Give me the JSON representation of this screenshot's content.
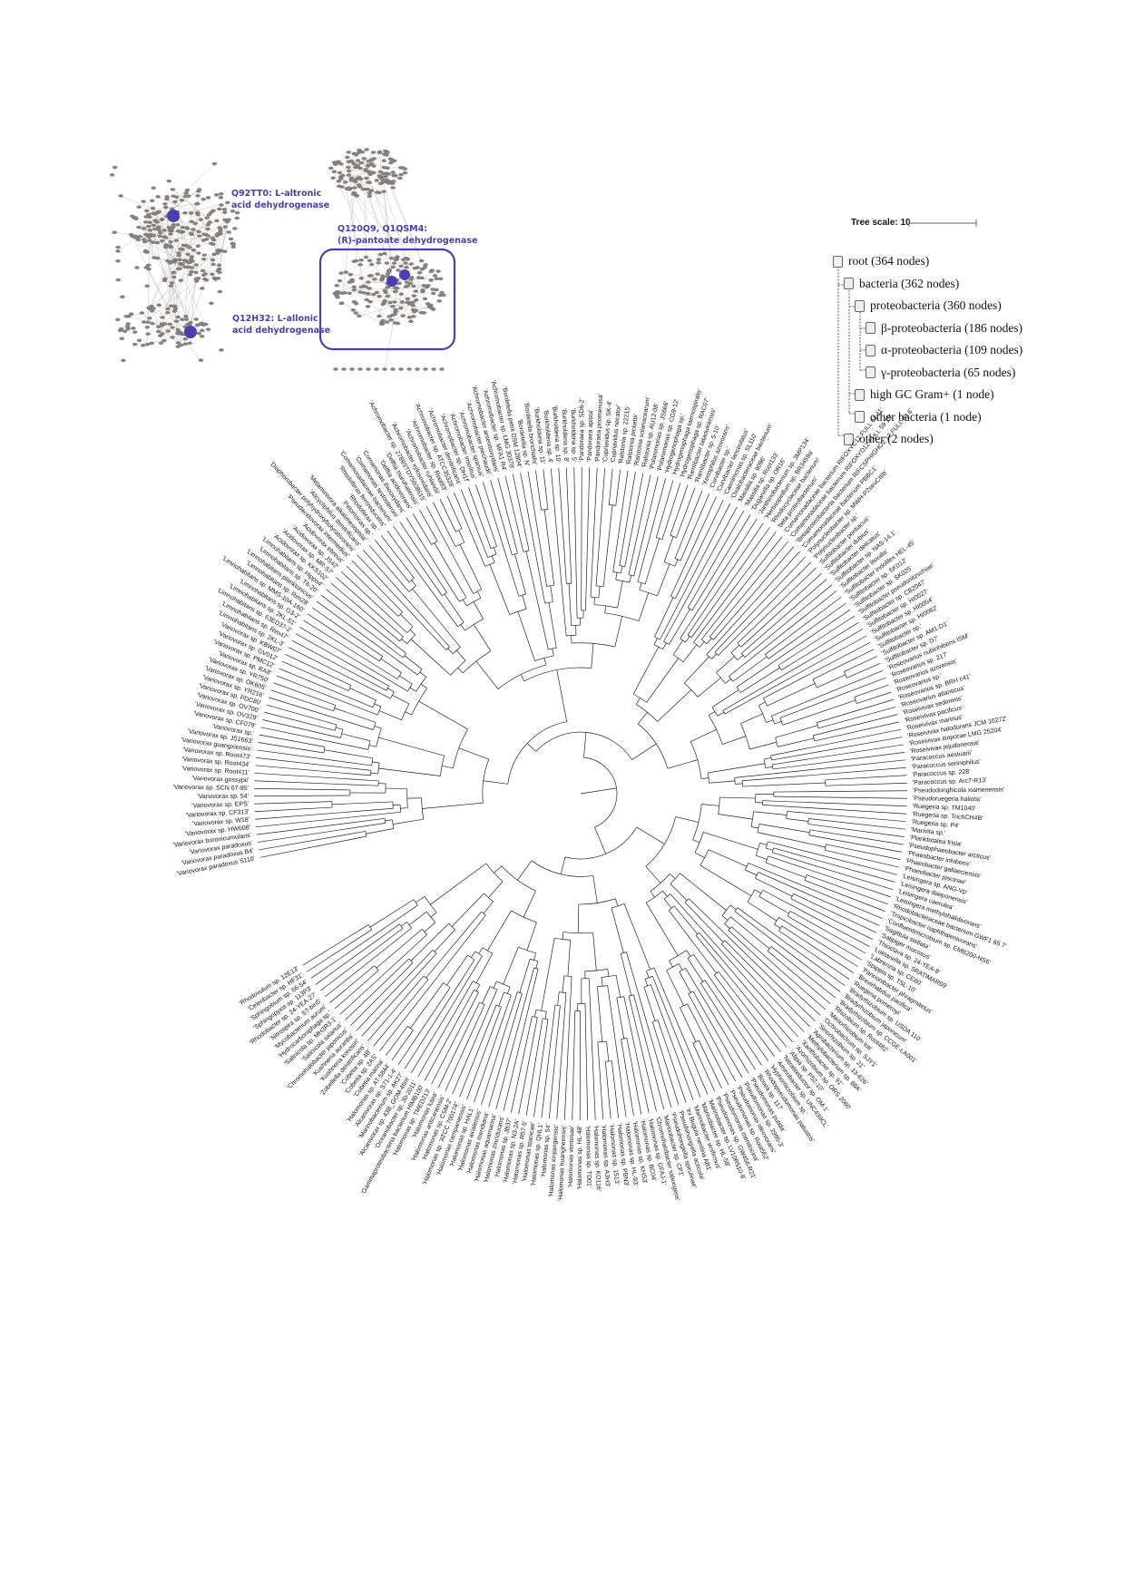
{
  "network": {
    "labels": [
      {
        "id": "q92tt0",
        "text": "Q92TT0: L-altronic\nacid dehydrogenase"
      },
      {
        "id": "q120q9",
        "text": "Q120Q9, Q1QSM4:\n(R)-pantoate dehydrogenase"
      },
      {
        "id": "q12h32",
        "text": "Q12H32: L-allonic\nacid dehydrogenase"
      }
    ],
    "highlight_color": "#4b3fb0",
    "node_color": "#8a8282"
  },
  "tree_scale": {
    "label": "Tree scale: 10"
  },
  "legend": [
    {
      "label": "root (364 nodes)",
      "level": 0
    },
    {
      "label": "bacteria (362 nodes)",
      "level": 1
    },
    {
      "label": "proteobacteria (360 nodes)",
      "level": 2
    },
    {
      "label": "β-proteobacteria (186 nodes)",
      "level": 3
    },
    {
      "label": "α-proteobacteria (109 nodes)",
      "level": 3
    },
    {
      "label": "γ-proteobacteria (65 nodes)",
      "level": 3
    },
    {
      "label": "high GC Gram+ (1 node)",
      "level": 2
    },
    {
      "label": "other bacteria (1 node)",
      "level": 2
    },
    {
      "label": "other (2 nodes)",
      "level": 1
    }
  ],
  "tree": {
    "leaf_labels": [
      "'Variovorax paradoxus S110'",
      "'Variovorax paradoxus B4'",
      "'Variovorax paradoxus'",
      "'Variovorax boronicumulans'",
      "'Variovorax sp. HW608'",
      "'Variovorax sp. W18'",
      "'Variovorax sp. CF313'",
      "'Variovorax sp. EPS'",
      "'Variovorax sp. 54'",
      "'Variovorax sp. SCN 67-85'",
      "'Variovorax gossypii'",
      "'Variovorax sp. Root411'",
      "'Variovorax sp. Root434'",
      "'Variovorax sp. Root473'",
      "'Variovorax guangxiensis'",
      "'Variovorax sp. JS1663'",
      "'Variovorax sp.'",
      "'Variovorax sp. CF079'",
      "'Variovorax sp. OV329'",
      "'Variovorax sp. OV700'",
      "'Variovorax sp. PDC80'",
      "'Variovorax sp. YR216'",
      "'Variovorax sp. OK605'",
      "'Variovorax sp. YR750'",
      "'Variovorax sp. RA8'",
      "'Variovorax sp. PMC12'",
      "'Variovorax sp. GV012'",
      "'Variovorax sp. KBW07'",
      "'Limnohabitans sp. 2KL-3'",
      "'Limnohabitans sp. Rim47'",
      "'Limnohabitans sp. 63ED37-2'",
      "'Limnohabitans sp. 2KL-51'",
      "'Limnohabitans sp. G3-2'",
      "'Limnohabitans sp. MMS-10A-160'",
      "'Limnohabitans sp. Rim28'",
      "'Limnohabitans planktonicus'",
      "'Limnohabitans sp. T6-20'",
      "'Limnohabitans sp. Hippo4'",
      "'Acidovorax sp. KKS102'",
      "'Acidovorax sp. MR-S7'",
      "'Acidovorax sp. JS42'",
      "'Acidovorax ebreus'",
      "'Pseudacidovorax intermedius'",
      "'Diaphorobacter polyhydroxybutyrativorans'",
      "'Alicycliphilus denitrificans'",
      "'Melaminivora alkalimesophila'",
      "'Pelomonas sp.'",
      "'Rhodoferax sp.'",
      "'Rhodoferax ferrireducens'",
      "'Comamonadaceae bacterium'",
      "'Comamonas testosteroni'",
      "'Comamonas thiooxydans'",
      "'Delftia acidovorans'",
      "'Delftia tsuruhatensis'",
      "'Achromobacter sp. 2789STDY5608615'",
      "'Achromobacter xylosoxidans'",
      "'Achromobacter ruhlandii'",
      "'Achromobacter sp. Root83'",
      "'Achromobacter sp. ATCC35328'",
      "'Achromobacter denitrificans'",
      "'Achromobacter sp. DH1f'",
      "'Achromobacter insolitus'",
      "'Achromobacter spanius'",
      "'Achromobacter piechaudii'",
      "'Achromobacter arsenitoxydans'",
      "'Achromobacter sp. MFA1 R4'",
      "'Achromobacter sp. LMG 30378'",
      "'Bordetella petrii DSM 12804'",
      "'Bordetella sp. N'",
      "'Bordetella bronchialis'",
      "'Burkholderia sp. 11'",
      "'Burkholderia sp. 4'",
      "'Burkholderia sp. 10'",
      "'Burkholderia sp. 8'",
      "'Burkholderia sp. 5'",
      "'Pandoraea sp. SD6-2'",
      "'Pandoraea apista'",
      "'Pandoraea pnomenusa'",
      "'Cupriavidus sp. SK-4'",
      "'Cupriavidus necator'",
      "'Ralstonia sp. 22215'",
      "'Ralstonia pickettii'",
      "'Ralstonia solanacearum'",
      "'Ralstonia sp. AU12-08'",
      "'Polaromonas sp. JS666'",
      "'Polaromonas sp. CG9-12'",
      "'Hydrogenophaga sp.'",
      "'Hydrogenophaga taeniospiralis'",
      "'Hydrogenophaga sp. RAC07'",
      "'Ramlibacter tataouinensis'",
      "'Ramlibacter sp. 5-10'",
      "'Xenophilus azovorans'",
      "'Curvibacter sp.'",
      "'Curvibacter lanceolatus'",
      "'Caenimonas sp. SL110'",
      "'Oxalobacteraceae bacterium'",
      "'Massilia sp. 9096'",
      "'Massilia sp. Root133'",
      "'Duganella sp. OR16'",
      "'Janthinobacterium sp. 3MP134'",
      "'Herbaspirillum sp. BR3459a'",
      "'Rhodocyclaceae bacterium'",
      "'beta proteobacterium'",
      "'Comamonadaceae bacterium RIFOXYC12 FULL 61 11'",
      "'Comamonadaceae bacterium RIFOXYD12 FULL 59 19'",
      "'Betaproteobacteria bacterium RIFCSPHIGHO2 12 FULL 60 6'",
      "'Comamonadaceae bacterium PBBC1'",
      "'Polynucleobacter sp. MWH-P2sevCIIIb'",
      "'Polynucleobacter sp.'",
      "'Sulfitobacter pontiacus'",
      "'Sulfitobacter dubius'",
      "'Sulfitobacter delicatus'",
      "'Sulfitobacter sp. NAS-14.1'",
      "'Sulfitobacter litoralis'",
      "'Sulfitobacter indolifex HEL-45'",
      "'Sulfitobacter sp. SK012'",
      "'Sulfitobacter sp. SK025'",
      "'Sulfitobacter pseudonitzschiae'",
      "'Sulfitobacter sp. CB2047'",
      "'Sulfitobacter sp. HI0027'",
      "'Sulfitobacter sp. HI0054'",
      "'Sulfitobacter sp. HI0082'",
      "'Sulfitobacter sp.'",
      "'Sulfitobacter sp. AM1-D1'",
      "'Sulfitobacter sp. D7'",
      "'Roseovarius nubinhibens ISM'",
      "'Roseovarius sp. 217'",
      "'Roseovarius azorensis'",
      "'Roseovarius sp.'",
      "'Roseovarius sp. BRH c41'",
      "'Roseovarius atlanticus'",
      "'Roseivivax sediminis'",
      "'Roseivivax pacificus'",
      "'Roseivivax marinus'",
      "'Roseivivax halodurans JCM 10272'",
      "'Roseivivax isoporae LMG 25204'",
      "'Roseivivax jejudonensis'",
      "'Paracoccus aestuarii'",
      "'Paracoccus seriniphilus'",
      "'Paracoccus sp. 228'",
      "'Paracoccus sp. Arc7-R13'",
      "'Pseudodonghicola xiamenensis'",
      "'Pseudoruegeria haliotis'",
      "'Ruegeria sp. TM1040'",
      "'Ruegeria sp. TrichCH4B'",
      "'Ruegeria sp. P4'",
      "'Marivita sp.'",
      "'Planktotalea frisia'",
      "'Pseudophaeobacter arcticus'",
      "'Phaeobacter inhibens'",
      "'Phaeobacter gallaeciensis'",
      "'Phaeobacter piscinae'",
      "'Leisingera sp. ANG-Vp'",
      "'Leisingera daeponensis'",
      "'Leisingera caerulea'",
      "'Leisingera methylohalidivorans'",
      "'Rhodobacteraceae bacterium GWF1 65 7'",
      "'Tropicibacter naphthalenivorans'",
      "'Confluentimicrobium sp. EMB200-NS6'",
      "'Sagittula stellata'",
      "'Salipiger mucosus'",
      "'Thioclava sp. 24-YEA-8'",
      "'Loktanella sp. 5RATIMAR09'",
      "'Labrenzia sp. CE80'",
      "'Stappia sp. TSL-10'",
      "'Pannonibacter phragmitetus'",
      "'Brevirhabdus pacifica'",
      "'Ruegeria pomeroyi'",
      "'Bradyrhizobium sp. USDA 110'",
      "'Bradyrhizobium japonicum'",
      "'Bradyrhizobium sp. CCGE-LA001'",
      "'Rhizobium sp. Root482'",
      "'Mesorhizobium loti'",
      "'Ochrobactrum sp. SJY1'",
      "'Sinorhizobium sp. 21'",
      "'Agrobacterium sp. 13-626'",
      "'Methylobacterium sp. 88A'",
      "'Xanthobacter sp. 91'",
      "'Azorhizobium sp. ORS 2060'",
      "'Afipia sp. P52-10'",
      "'Nitratireductor sp. OM-1'",
      "'Aminobacter sp. UNC439CL'",
      "'Hyphomicrobium sp.'",
      "'Rhodopseudomonas palustris'",
      "'Bosea sp. 117'",
      "'Pseudomonas putida'",
      "'Pseudomonas sp. 2995-3'",
      "'Pseudomonas oleovorans'",
      "'Pseudomonas sp. Root562'",
      "'Pseudomonas mendocina'",
      "'Pseudomonas sp. GW456-R21'",
      "'Marinobacter sp. LV10R510-8'",
      "'Marinobacter sp. HL-58'",
      "'Marinobacter vinifirmus'",
      "'ex Bugula neritina AB1'",
      "'Pseudohongiella acticola'",
      "'Pseudohongiella spirulinae'",
      "'Marinobacter sp. CP1'",
      "'Chromohalobacter salexigens'",
      "'Halomonas sp. GFAJ-1'",
      "'Halomonas sp. BC04'",
      "'Halomonas sp. KHS3'",
      "'Halomonas sp. HL-93'",
      "'Halomonas sp. PBN3'",
      "'Halomonas sp. 1513'",
      "'Halomonas sp. A3H3'",
      "'Halomonas sp. KO116'",
      "'Halomonas sp. TD01'",
      "'Halomonas sp. HL-48'",
      "'Halomonas ventosae'",
      "'Halomonas huangheensis'",
      "'Halomonas xinjiangensis'",
      "'Halomonas sp. 54'",
      "'Halomonas sp. QHL1'",
      "'Halomonas titanicae'",
      "'Halomonas sp. R57-5'",
      "'Halomonas sp. N3-2A'",
      "'Halomonas sp. JB37'",
      "'Halomonas zincidurans'",
      "'Halomonas aquamarina'",
      "'Halomonas meridiana'",
      "'Halomonas axialensis'",
      "'Halomonas sp. HAL1'",
      "'Halomonas campaniensis'",
      "'Halomonas sp. 'ATCC 700174''",
      "'Halomonas sp. CSM-2'",
      "'Halomonas anticariensis'",
      "'Halomonas lutea'",
      "'Halomonas sp. TMED213'",
      "'Gammaproteobacteria bacterium HIMB100'",
      "'Oceanobacter sp. 30-2011'",
      "'Alcanivorax sp. 43B_GOM-46m'",
      "'Marinobacterium sp. AK27'",
      "'Alcanivorax sp. S71-1-4'",
      "'Halomonas sp. AT-5844'",
      "'Cobetia marina'",
      "'Cobetia sp. 2AS'",
      "'Cobetia sp. 4B'",
      "'Zobellella denitrificans'",
      "'Kushneria konosiri'",
      "'Kushneria aurantia'",
      "'Chromohalobacter japonicus'",
      "'Salinicola salarius'",
      "'Salinicola sp. MH3R3-1'",
      "'Hydrocarboniphaga sp.'",
      "'Mycobacterium aurum'",
      "'Nitrospira sp. ST-bin5'",
      "'Rhodobacter sp. 24-YEA-27'",
      "'Sphingopyxis sp. 113P3'",
      "'Sphingobium sp. 66-54'",
      "'Celeribacter sp. HF31'",
      "'Rhodovulum sp. 12E13'"
    ]
  }
}
